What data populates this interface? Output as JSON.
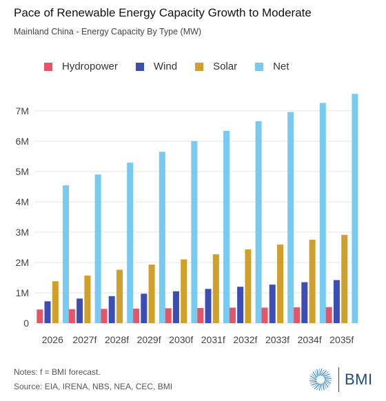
{
  "title": "Pace of Renewable Energy Capacity Growth to Moderate",
  "subtitle": "Mainland China - Energy Capacity By Type (MW)",
  "notes": "Notes: f = BMI forecast.",
  "source": "Source: EIA, IRENA, NBS, NEA, CEC, BMI",
  "brand": {
    "name": "BMI",
    "logo": "BMI-sunburst-logo",
    "color": "#1f4a7a"
  },
  "chart_data": {
    "type": "bar",
    "title": "Pace of Renewable Energy Capacity Growth to Moderate",
    "subtitle": "Mainland China - Energy Capacity By Type (MW)",
    "xlabel": "",
    "ylabel": "",
    "ylim": [
      0,
      7700000
    ],
    "yticks": [
      0,
      1000000,
      2000000,
      3000000,
      4000000,
      5000000,
      6000000,
      7000000
    ],
    "ytick_labels": [
      "0",
      "1M",
      "2M",
      "3M",
      "4M",
      "5M",
      "6M",
      "7M"
    ],
    "grid": true,
    "legend_position": "top-left",
    "categories": [
      "2026",
      "2027f",
      "2028f",
      "2029f",
      "2030f",
      "2031f",
      "2032f",
      "2033f",
      "2034f",
      "2035f"
    ],
    "series": [
      {
        "name": "Hydropower",
        "color": "#e45565",
        "values": [
          450000,
          460000,
          470000,
          480000,
          490000,
          500000,
          510000,
          510000,
          520000,
          530000
        ]
      },
      {
        "name": "Wind",
        "color": "#3c4db4",
        "values": [
          720000,
          810000,
          890000,
          970000,
          1050000,
          1130000,
          1200000,
          1270000,
          1350000,
          1420000
        ]
      },
      {
        "name": "Solar",
        "color": "#d0a02a",
        "values": [
          1380000,
          1570000,
          1760000,
          1930000,
          2100000,
          2270000,
          2430000,
          2590000,
          2750000,
          2910000
        ]
      },
      {
        "name": "Net",
        "color": "#79caf0",
        "values": [
          4540000,
          4900000,
          5290000,
          5650000,
          6000000,
          6340000,
          6660000,
          6960000,
          7260000,
          7560000
        ]
      }
    ]
  }
}
